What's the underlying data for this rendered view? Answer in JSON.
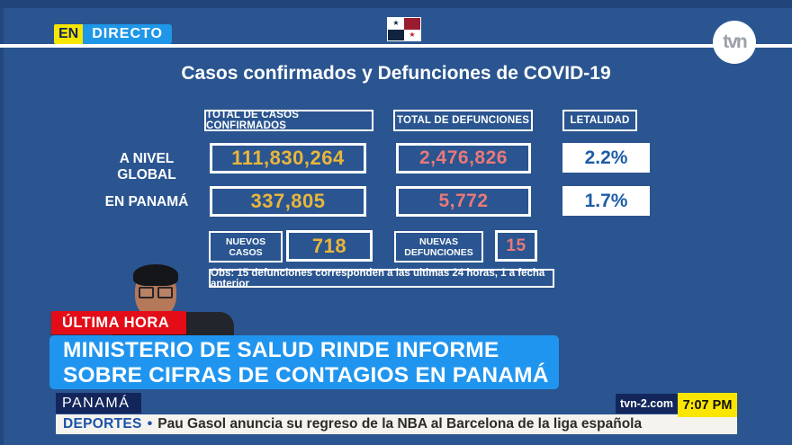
{
  "live_badge": {
    "en": "EN",
    "directo": "DIRECTO"
  },
  "channel": {
    "logo_text": "tvn"
  },
  "board": {
    "title": "Casos confirmados y Defunciones de COVID-19",
    "headers": {
      "confirmed": "TOTAL DE CASOS CONFIRMADOS",
      "deaths": "TOTAL DE DEFUNCIONES",
      "lethality": "LETALIDAD"
    },
    "rows": [
      {
        "label": "A NIVEL GLOBAL",
        "confirmed": "111,830,264",
        "deaths": "2,476,826",
        "lethality": "2.2%"
      },
      {
        "label": "EN PANAMÁ",
        "confirmed": "337,805",
        "deaths": "5,772",
        "lethality": "1.7%"
      }
    ],
    "new_cases": {
      "line1": "NUEVOS",
      "line2": "CASOS",
      "value": "718"
    },
    "new_deaths": {
      "line1": "NUEVAS",
      "line2": "DEFUNCIONES",
      "value": "15"
    },
    "note": "Obs: 15 defunciones corresponden a las ultimas 24 horas, 1 a fecha anterior"
  },
  "lower_third": {
    "breaking": "ÚLTIMA HORA",
    "headline_line1": "MINISTERIO DE SALUD RINDE INFORME",
    "headline_line2": "SOBRE CIFRAS DE CONTAGIOS EN PANAMÁ",
    "location": "PANAMÁ"
  },
  "footer": {
    "website": "tvn-2.com",
    "time": "7:07 PM",
    "ticker_category": "DEPORTES",
    "ticker_separator": "•",
    "ticker_text": "Pau Gasol anuncia su regreso de la NBA al Barcelona de la liga española"
  },
  "colors": {
    "background_blue": "#2A5590",
    "banner_blue": "#2095EF",
    "badge_red": "#E30D18",
    "live_yellow": "#F7E600",
    "live_blue": "#1F97E8",
    "confirmed_value": "#E9B63B",
    "deaths_value": "#E8797A",
    "lethality_text": "#1E5DA6",
    "navy_box": "#13265C",
    "time_yellow": "#FAE600"
  },
  "chart_data": {
    "type": "table",
    "title": "Casos confirmados y Defunciones de COVID-19",
    "columns": [
      "",
      "TOTAL DE CASOS CONFIRMADOS",
      "TOTAL DE DEFUNCIONES",
      "LETALIDAD"
    ],
    "rows": [
      [
        "A NIVEL GLOBAL",
        "111,830,264",
        "2,476,826",
        "2.2%"
      ],
      [
        "EN PANAMÁ",
        "337,805",
        "5,772",
        "1.7%"
      ]
    ],
    "nuevos_casos": 718,
    "nuevas_defunciones": 15,
    "note": "Obs: 15 defunciones corresponden a las ultimas 24 horas, 1 a fecha anterior"
  }
}
